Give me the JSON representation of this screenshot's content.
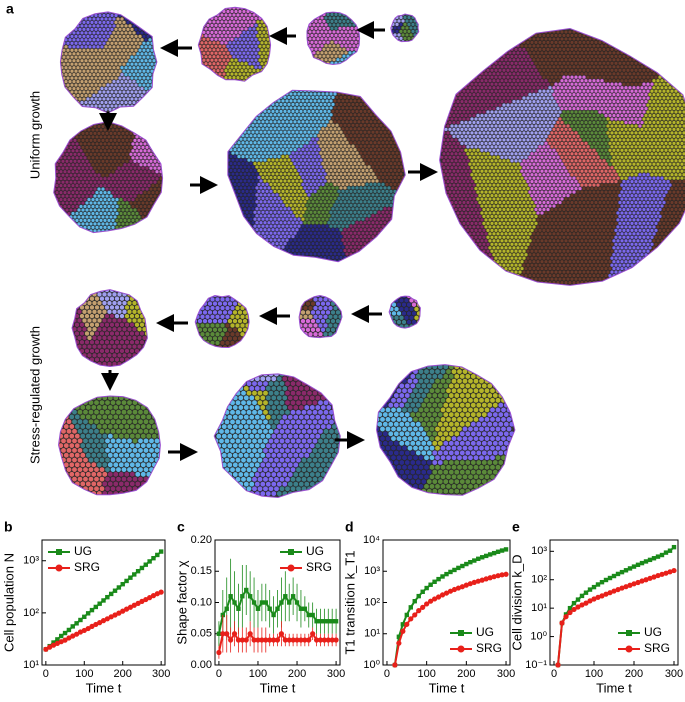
{
  "panel_a": {
    "label": "a",
    "rows": [
      "Uniform growth",
      "Stress-regulated growth"
    ]
  },
  "chart_data": [
    {
      "type": "line",
      "panel_label": "b",
      "xlabel": "Time t",
      "ylabel": "Cell population N",
      "log_y": true,
      "legend": "upper left",
      "xlim": [
        -10,
        310
      ],
      "xticks": [
        0,
        100,
        200,
        300
      ],
      "ylim": [
        10,
        2500
      ],
      "yticks": [
        {
          "value": 10,
          "label": "10¹"
        },
        {
          "value": 100,
          "label": "10²"
        },
        {
          "value": 1000,
          "label": "10³"
        }
      ],
      "x": [
        0,
        10,
        20,
        30,
        40,
        50,
        60,
        70,
        80,
        90,
        100,
        110,
        120,
        130,
        140,
        150,
        160,
        170,
        180,
        190,
        200,
        210,
        220,
        230,
        240,
        250,
        260,
        270,
        280,
        290,
        300
      ],
      "series": [
        {
          "name": "UG",
          "color": "#1a8a1a",
          "marker": "square",
          "values": [
            20,
            23,
            27,
            31,
            36,
            41,
            47,
            55,
            63,
            73,
            84,
            98,
            113,
            130,
            150,
            173,
            200,
            231,
            266,
            307,
            355,
            410,
            473,
            546,
            630,
            727,
            840,
            970,
            1119,
            1292,
            1500
          ]
        },
        {
          "name": "SRG",
          "color": "#e8201a",
          "marker": "circle",
          "values": [
            20,
            22,
            24,
            26,
            28,
            30,
            33,
            36,
            39,
            43,
            46,
            50,
            55,
            60,
            65,
            71,
            77,
            84,
            91,
            99,
            108,
            118,
            128,
            140,
            152,
            166,
            180,
            196,
            214,
            233,
            250
          ]
        }
      ]
    },
    {
      "type": "line",
      "panel_label": "c",
      "xlabel": "Time t",
      "ylabel": "Shape factor χ",
      "log_y": false,
      "legend": "upper right",
      "xlim": [
        -10,
        310
      ],
      "xticks": [
        0,
        100,
        200,
        300
      ],
      "ylim": [
        0,
        0.2
      ],
      "yticks": [
        {
          "value": 0,
          "label": "0.00"
        },
        {
          "value": 0.05,
          "label": "0.05"
        },
        {
          "value": 0.1,
          "label": "0.10"
        },
        {
          "value": 0.15,
          "label": "0.15"
        },
        {
          "value": 0.2,
          "label": "0.20"
        }
      ],
      "x": [
        0,
        10,
        20,
        30,
        40,
        50,
        60,
        70,
        80,
        90,
        100,
        110,
        120,
        130,
        140,
        150,
        160,
        170,
        180,
        190,
        200,
        210,
        220,
        230,
        240,
        250,
        260,
        270,
        280,
        290,
        300
      ],
      "series": [
        {
          "name": "UG",
          "color": "#1a8a1a",
          "marker": "square",
          "values": [
            0.05,
            0.08,
            0.09,
            0.11,
            0.1,
            0.09,
            0.11,
            0.12,
            0.11,
            0.1,
            0.09,
            0.1,
            0.1,
            0.09,
            0.08,
            0.09,
            0.1,
            0.11,
            0.1,
            0.11,
            0.1,
            0.09,
            0.09,
            0.08,
            0.08,
            0.07,
            0.07,
            0.07,
            0.07,
            0.07,
            0.07
          ],
          "errors": [
            0.02,
            0.04,
            0.05,
            0.06,
            0.05,
            0.04,
            0.05,
            0.04,
            0.04,
            0.04,
            0.03,
            0.03,
            0.03,
            0.03,
            0.03,
            0.03,
            0.04,
            0.04,
            0.03,
            0.03,
            0.03,
            0.03,
            0.02,
            0.02,
            0.02,
            0.02,
            0.02,
            0.02,
            0.02,
            0.02,
            0.02
          ]
        },
        {
          "name": "SRG",
          "color": "#e8201a",
          "marker": "circle",
          "values": [
            0.02,
            0.05,
            0.05,
            0.04,
            0.05,
            0.04,
            0.04,
            0.04,
            0.05,
            0.04,
            0.04,
            0.04,
            0.04,
            0.04,
            0.04,
            0.04,
            0.05,
            0.04,
            0.04,
            0.04,
            0.04,
            0.04,
            0.04,
            0.04,
            0.05,
            0.04,
            0.04,
            0.04,
            0.04,
            0.04,
            0.04
          ],
          "errors": [
            0.01,
            0.03,
            0.03,
            0.02,
            0.02,
            0.02,
            0.02,
            0.02,
            0.02,
            0.02,
            0.02,
            0.02,
            0.02,
            0.01,
            0.01,
            0.01,
            0.02,
            0.01,
            0.01,
            0.01,
            0.01,
            0.01,
            0.01,
            0.01,
            0.01,
            0.01,
            0.01,
            0.01,
            0.01,
            0.01,
            0.01
          ]
        }
      ]
    },
    {
      "type": "line",
      "panel_label": "d",
      "xlabel": "Time t",
      "ylabel": "T1 transition k_T1",
      "log_y": true,
      "legend": "lower right",
      "xlim": [
        -10,
        310
      ],
      "xticks": [
        0,
        100,
        200,
        300
      ],
      "ylim": [
        1,
        10000
      ],
      "yticks": [
        {
          "value": 1,
          "label": "10⁰"
        },
        {
          "value": 10,
          "label": "10¹"
        },
        {
          "value": 100,
          "label": "10²"
        },
        {
          "value": 1000,
          "label": "10³"
        },
        {
          "value": 10000,
          "label": "10⁴"
        }
      ],
      "x": [
        20,
        30,
        40,
        50,
        60,
        70,
        80,
        90,
        100,
        110,
        120,
        130,
        140,
        150,
        160,
        170,
        180,
        190,
        200,
        210,
        220,
        230,
        240,
        250,
        260,
        270,
        280,
        290,
        300
      ],
      "series": [
        {
          "name": "UG",
          "color": "#1a8a1a",
          "marker": "square",
          "values": [
            1,
            8,
            20,
            40,
            70,
            110,
            160,
            220,
            290,
            370,
            460,
            560,
            680,
            810,
            950,
            1100,
            1280,
            1470,
            1700,
            1950,
            2200,
            2500,
            2800,
            3100,
            3450,
            3800,
            4200,
            4600,
            5000
          ]
        },
        {
          "name": "SRG",
          "color": "#e8201a",
          "marker": "circle",
          "values": [
            1,
            5,
            12,
            20,
            30,
            40,
            55,
            70,
            90,
            110,
            130,
            150,
            175,
            200,
            230,
            260,
            290,
            320,
            360,
            400,
            440,
            480,
            520,
            570,
            620,
            670,
            720,
            770,
            800
          ]
        }
      ]
    },
    {
      "type": "line",
      "panel_label": "e",
      "xlabel": "Time t",
      "ylabel": "Cell division k_D",
      "log_y": true,
      "legend": "lower right",
      "xlim": [
        -10,
        310
      ],
      "xticks": [
        0,
        100,
        200,
        300
      ],
      "ylim": [
        0.1,
        2500
      ],
      "yticks": [
        {
          "value": 0.1,
          "label": "10⁻¹"
        },
        {
          "value": 1,
          "label": "10⁰"
        },
        {
          "value": 10,
          "label": "10¹"
        },
        {
          "value": 100,
          "label": "10²"
        },
        {
          "value": 1000,
          "label": "10³"
        }
      ],
      "x": [
        10,
        20,
        30,
        40,
        50,
        60,
        70,
        80,
        90,
        100,
        110,
        120,
        130,
        140,
        150,
        160,
        170,
        180,
        190,
        200,
        210,
        220,
        230,
        240,
        250,
        260,
        270,
        280,
        290,
        300
      ],
      "series": [
        {
          "name": "UG",
          "color": "#1a8a1a",
          "marker": "square",
          "values": [
            0.1,
            3,
            6,
            10,
            15,
            20,
            27,
            35,
            45,
            55,
            68,
            82,
            98,
            115,
            135,
            160,
            185,
            215,
            250,
            290,
            335,
            385,
            440,
            500,
            570,
            650,
            740,
            900,
            1050,
            1400
          ]
        },
        {
          "name": "SRG",
          "color": "#e8201a",
          "marker": "circle",
          "values": [
            0.1,
            3,
            5,
            7,
            9,
            11,
            13,
            15,
            18,
            21,
            24,
            27,
            31,
            35,
            40,
            45,
            51,
            57,
            64,
            72,
            80,
            90,
            100,
            112,
            125,
            140,
            155,
            170,
            190,
            210
          ]
        }
      ]
    }
  ]
}
